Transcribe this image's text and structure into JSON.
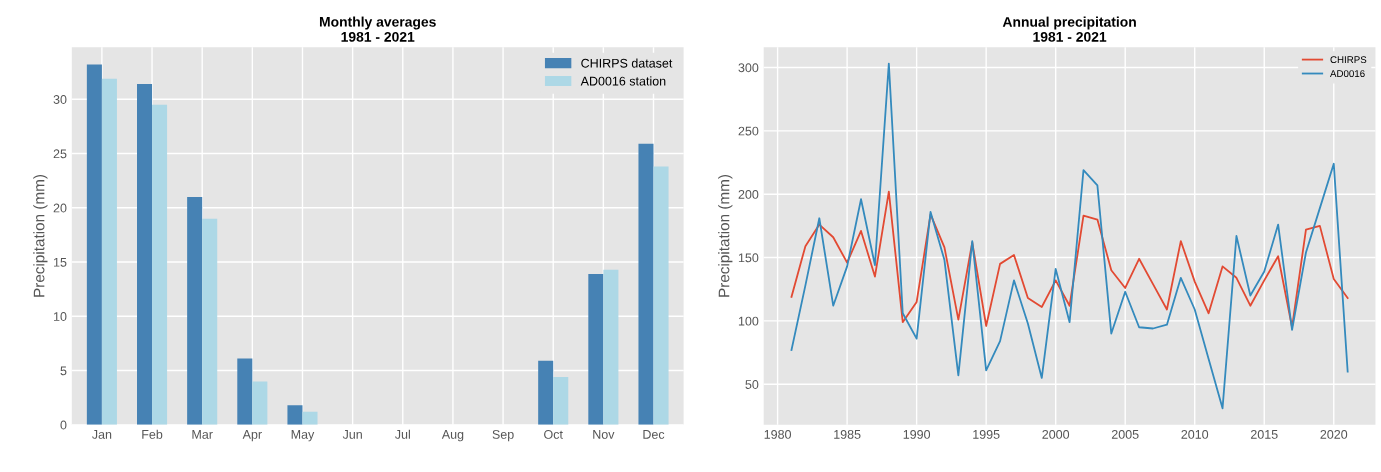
{
  "chart_data": [
    {
      "type": "bar",
      "title": "Monthly averages\n1981 - 2021",
      "ylabel": "Precipitation (mm)",
      "categories": [
        "Jan",
        "Feb",
        "Mar",
        "Apr",
        "May",
        "Jun",
        "Jul",
        "Aug",
        "Sep",
        "Oct",
        "Nov",
        "Dec"
      ],
      "series": [
        {
          "name": "CHIRPS dataset",
          "color": "#4682b4",
          "values": [
            33.2,
            31.4,
            21.0,
            6.1,
            1.8,
            0,
            0,
            0,
            0,
            5.9,
            13.9,
            25.9
          ]
        },
        {
          "name": "AD0016 station",
          "color": "#add8e6",
          "values": [
            31.9,
            29.5,
            19.0,
            4.0,
            1.2,
            0,
            0,
            0,
            0,
            4.4,
            14.3,
            23.8
          ]
        }
      ],
      "ylim": [
        0,
        34.8
      ],
      "yticks": [
        0,
        5,
        10,
        15,
        20,
        25,
        30
      ],
      "grid": true,
      "legend": "top right"
    },
    {
      "type": "line",
      "title": "Annual precipitation\n1981 - 2021",
      "ylabel": "Precipitation (mm)",
      "x": [
        1981,
        1982,
        1983,
        1984,
        1985,
        1986,
        1987,
        1988,
        1989,
        1990,
        1991,
        1992,
        1993,
        1994,
        1995,
        1996,
        1997,
        1998,
        1999,
        2000,
        2001,
        2002,
        2003,
        2004,
        2005,
        2006,
        2007,
        2008,
        2009,
        2010,
        2011,
        2012,
        2013,
        2014,
        2015,
        2016,
        2017,
        2018,
        2019,
        2020,
        2021
      ],
      "series": [
        {
          "name": "CHIRPS",
          "color": "#e24a33",
          "values": [
            119,
            159,
            176,
            166,
            146,
            171,
            135,
            202,
            99,
            115,
            184,
            158,
            101,
            162,
            96,
            145,
            152,
            118,
            111,
            132,
            112,
            183,
            180,
            140,
            126,
            149,
            129,
            109,
            163,
            131,
            106,
            143,
            134,
            112,
            132,
            151,
            95,
            172,
            175,
            133,
            118
          ]
        },
        {
          "name": "AD0016",
          "color": "#348abd",
          "values": [
            77,
            128,
            181,
            112,
            143,
            196,
            144,
            303,
            106,
            86,
            186,
            148,
            57,
            163,
            61,
            84,
            132,
            98,
            55,
            141,
            99,
            219,
            207,
            90,
            123,
            95,
            94,
            97,
            134,
            109,
            70,
            31,
            167,
            120,
            139,
            176,
            93,
            154,
            189,
            224,
            60
          ]
        }
      ],
      "xlim": [
        1979,
        2023
      ],
      "xticks": [
        1980,
        1985,
        1990,
        1995,
        2000,
        2005,
        2010,
        2015,
        2020
      ],
      "ylim": [
        18,
        316
      ],
      "yticks": [
        50,
        100,
        150,
        200,
        250,
        300
      ],
      "grid": true,
      "legend": "top right"
    }
  ]
}
